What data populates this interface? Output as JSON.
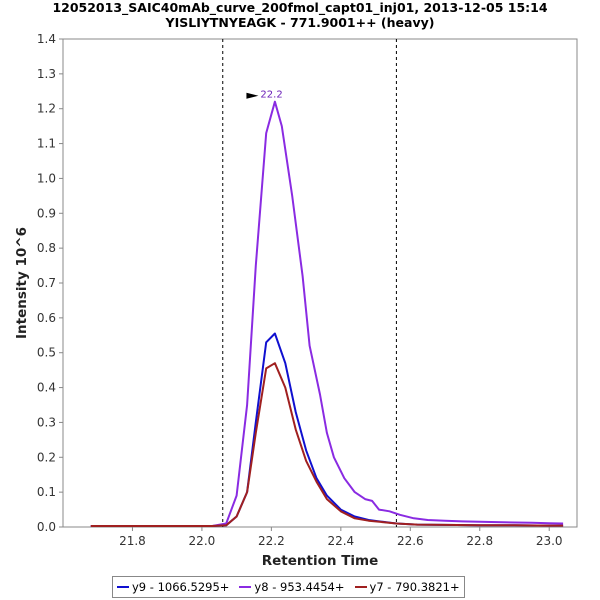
{
  "title_lines": [
    "12052013_SAIC40mAb_curve_200fmol_capt01_inj01, 2013-12-05 15:14",
    "YISLIYTNYEAGK - 771.9001++ (heavy)"
  ],
  "chart_data": {
    "type": "line",
    "xlabel": "Retention Time",
    "ylabel": "Intensity 10^6",
    "xlim": [
      21.6,
      23.08
    ],
    "ylim": [
      0,
      1.4
    ],
    "x_ticks": [
      "21.8",
      "22.0",
      "22.2",
      "22.4",
      "22.6",
      "22.8",
      "23.0"
    ],
    "y_ticks": [
      "0.0",
      "0.1",
      "0.2",
      "0.3",
      "0.4",
      "0.5",
      "0.6",
      "0.7",
      "0.8",
      "0.9",
      "1.0",
      "1.1",
      "1.2",
      "1.3",
      "1.4"
    ],
    "integration_bounds": [
      22.06,
      22.56
    ],
    "peak_annotation": {
      "label": "22.2",
      "x": 22.18,
      "y": 1.22
    },
    "legend_position": "bottom",
    "grid": false,
    "series": [
      {
        "name": "y9 - 1066.5295+",
        "color": "#1010d0",
        "points": [
          [
            21.68,
            0.003
          ],
          [
            21.75,
            0.003
          ],
          [
            21.85,
            0.003
          ],
          [
            21.95,
            0.003
          ],
          [
            22.03,
            0.003
          ],
          [
            22.07,
            0.005
          ],
          [
            22.1,
            0.03
          ],
          [
            22.13,
            0.1
          ],
          [
            22.155,
            0.3
          ],
          [
            22.185,
            0.53
          ],
          [
            22.21,
            0.555
          ],
          [
            22.24,
            0.47
          ],
          [
            22.27,
            0.33
          ],
          [
            22.3,
            0.22
          ],
          [
            22.33,
            0.14
          ],
          [
            22.36,
            0.09
          ],
          [
            22.4,
            0.05
          ],
          [
            22.44,
            0.03
          ],
          [
            22.48,
            0.02
          ],
          [
            22.52,
            0.015
          ],
          [
            22.56,
            0.01
          ],
          [
            22.62,
            0.007
          ],
          [
            22.7,
            0.006
          ],
          [
            22.8,
            0.005
          ],
          [
            22.9,
            0.005
          ],
          [
            23.0,
            0.004
          ],
          [
            23.04,
            0.004
          ]
        ]
      },
      {
        "name": "y8 - 953.4454+",
        "color": "#8a2be2",
        "points": [
          [
            21.68,
            0.003
          ],
          [
            21.75,
            0.003
          ],
          [
            21.85,
            0.003
          ],
          [
            21.95,
            0.003
          ],
          [
            22.03,
            0.003
          ],
          [
            22.07,
            0.01
          ],
          [
            22.1,
            0.09
          ],
          [
            22.13,
            0.35
          ],
          [
            22.155,
            0.75
          ],
          [
            22.185,
            1.13
          ],
          [
            22.21,
            1.22
          ],
          [
            22.23,
            1.15
          ],
          [
            22.26,
            0.95
          ],
          [
            22.29,
            0.72
          ],
          [
            22.31,
            0.52
          ],
          [
            22.34,
            0.38
          ],
          [
            22.36,
            0.27
          ],
          [
            22.38,
            0.2
          ],
          [
            22.41,
            0.14
          ],
          [
            22.44,
            0.1
          ],
          [
            22.47,
            0.08
          ],
          [
            22.49,
            0.075
          ],
          [
            22.51,
            0.05
          ],
          [
            22.54,
            0.045
          ],
          [
            22.57,
            0.035
          ],
          [
            22.61,
            0.025
          ],
          [
            22.65,
            0.02
          ],
          [
            22.7,
            0.018
          ],
          [
            22.75,
            0.016
          ],
          [
            22.8,
            0.015
          ],
          [
            22.85,
            0.014
          ],
          [
            22.9,
            0.013
          ],
          [
            22.95,
            0.012
          ],
          [
            23.0,
            0.011
          ],
          [
            23.04,
            0.01
          ]
        ]
      },
      {
        "name": "y7 - 790.3821+",
        "color": "#a02020",
        "points": [
          [
            21.68,
            0.003
          ],
          [
            21.75,
            0.003
          ],
          [
            21.85,
            0.003
          ],
          [
            21.95,
            0.003
          ],
          [
            22.03,
            0.003
          ],
          [
            22.07,
            0.005
          ],
          [
            22.1,
            0.03
          ],
          [
            22.13,
            0.1
          ],
          [
            22.155,
            0.27
          ],
          [
            22.185,
            0.455
          ],
          [
            22.21,
            0.47
          ],
          [
            22.24,
            0.4
          ],
          [
            22.27,
            0.28
          ],
          [
            22.3,
            0.19
          ],
          [
            22.33,
            0.13
          ],
          [
            22.36,
            0.08
          ],
          [
            22.4,
            0.045
          ],
          [
            22.44,
            0.025
          ],
          [
            22.48,
            0.018
          ],
          [
            22.52,
            0.014
          ],
          [
            22.56,
            0.01
          ],
          [
            22.62,
            0.007
          ],
          [
            22.7,
            0.006
          ],
          [
            22.8,
            0.005
          ],
          [
            22.9,
            0.005
          ],
          [
            23.0,
            0.004
          ],
          [
            23.04,
            0.004
          ]
        ]
      }
    ]
  }
}
